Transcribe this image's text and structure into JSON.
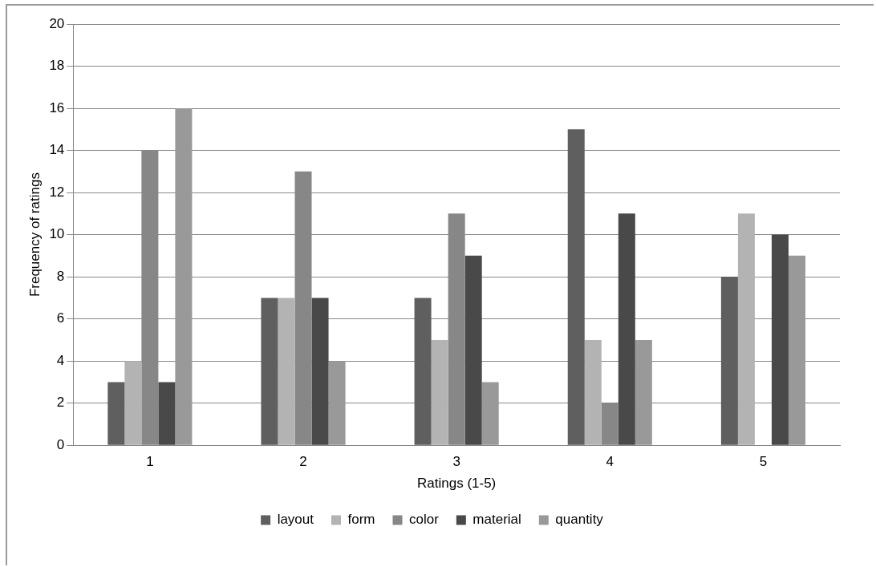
{
  "chart_data": {
    "type": "bar",
    "xlabel": "Ratings (1-5)",
    "ylabel": "Frequency of ratings",
    "categories": [
      "1",
      "2",
      "3",
      "4",
      "5"
    ],
    "series": [
      {
        "name": "layout",
        "color": "#5f5f5f",
        "values": [
          3,
          7,
          7,
          15,
          8
        ]
      },
      {
        "name": "form",
        "color": "#b3b3b3",
        "values": [
          4,
          7,
          5,
          5,
          11
        ]
      },
      {
        "name": "color",
        "color": "#878787",
        "values": [
          14,
          13,
          11,
          2,
          0
        ]
      },
      {
        "name": "material",
        "color": "#494949",
        "values": [
          3,
          7,
          9,
          11,
          10
        ]
      },
      {
        "name": "quantity",
        "color": "#999999",
        "values": [
          16,
          4,
          3,
          5,
          9
        ]
      }
    ],
    "ylim": [
      0,
      20
    ],
    "yticks": [
      0,
      2,
      4,
      6,
      8,
      10,
      12,
      14,
      16,
      18,
      20
    ],
    "grid": "y",
    "legend": "bottom"
  }
}
